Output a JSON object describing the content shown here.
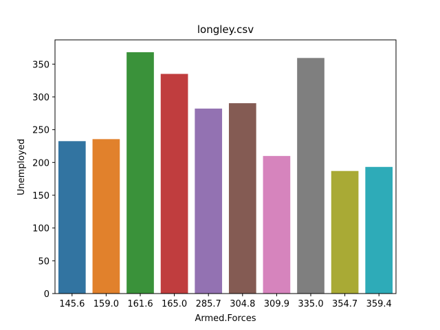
{
  "chart_data": {
    "type": "bar",
    "title": "longley.csv",
    "xlabel": "Armed.Forces",
    "ylabel": "Unemployed",
    "categories": [
      "145.6",
      "159.0",
      "161.6",
      "165.0",
      "285.7",
      "304.8",
      "309.9",
      "335.0",
      "354.7",
      "359.4"
    ],
    "values": [
      232.5,
      235.6,
      368.2,
      335.1,
      282.2,
      290.4,
      209.9,
      359.4,
      187.0,
      193.2
    ],
    "colors": [
      "#3274a1",
      "#e1812c",
      "#3a923a",
      "#c03d3e",
      "#9372b2",
      "#845b53",
      "#d684bd",
      "#7f7f7f",
      "#a9aa35",
      "#2eabb8"
    ],
    "ylim": [
      0,
      387
    ],
    "yticks": [
      0,
      50,
      100,
      150,
      200,
      250,
      300,
      350
    ],
    "grid": false,
    "legend": "none"
  }
}
